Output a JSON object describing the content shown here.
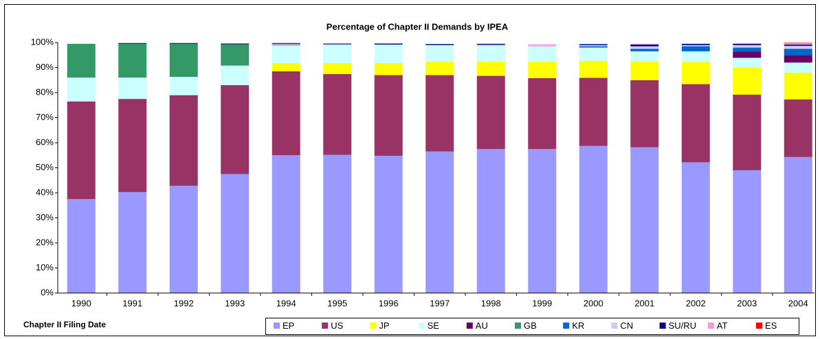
{
  "chart_data": {
    "type": "stacked_bar",
    "title": "Percentage of Chapter II Demands by IPEA",
    "x_label": "Chapter II Filing Date",
    "categories": [
      "1990",
      "1991",
      "1992",
      "1993",
      "1994",
      "1995",
      "1996",
      "1997",
      "1998",
      "1999",
      "2000",
      "2001",
      "2002",
      "2003",
      "2004"
    ],
    "series": [
      {
        "name": "EP",
        "color": "#9999ff",
        "values": [
          37.5,
          40.3,
          42.8,
          47.5,
          55,
          55.2,
          54.8,
          56.5,
          57.5,
          57.5,
          58.7,
          58.2,
          52.2,
          49,
          54.3
        ]
      },
      {
        "name": "US",
        "color": "#993366",
        "values": [
          39,
          37.2,
          36.2,
          35.5,
          33.5,
          32.2,
          32.2,
          30.5,
          29.2,
          28.3,
          27.2,
          26.8,
          31.2,
          30.2,
          23
        ]
      },
      {
        "name": "JP",
        "color": "#ffff00",
        "values": [
          0,
          0,
          0,
          0,
          3.3,
          4.4,
          4.8,
          5.3,
          5.7,
          6.5,
          6.8,
          7.3,
          8.8,
          10.8,
          10.7
        ]
      },
      {
        "name": "SE",
        "color": "#ccffff",
        "values": [
          9.5,
          8.5,
          7.3,
          7.8,
          7.2,
          7.2,
          7.4,
          6.7,
          6.3,
          6,
          5.3,
          4.2,
          4.3,
          3.9,
          4
        ]
      },
      {
        "name": "AU",
        "color": "#660066",
        "values": [
          0,
          0,
          0,
          0,
          0.2,
          0,
          0,
          0,
          0,
          0,
          0,
          0,
          0,
          2.5,
          3
        ]
      },
      {
        "name": "GB",
        "color": "#339966",
        "values": [
          13.5,
          13.5,
          13.2,
          8.5,
          0,
          0,
          0,
          0,
          0,
          0,
          0,
          0,
          0,
          0,
          0
        ]
      },
      {
        "name": "KR",
        "color": "#0066cc",
        "values": [
          0,
          0,
          0,
          0,
          0,
          0,
          0,
          0,
          0,
          0,
          0.5,
          1,
          2,
          1.6,
          2.5
        ]
      },
      {
        "name": "CN",
        "color": "#ccccff",
        "values": [
          0,
          0,
          0,
          0,
          0.3,
          0.3,
          0,
          0,
          0.4,
          0.5,
          0.5,
          1,
          0.5,
          1,
          1.2
        ]
      },
      {
        "name": "SU/RU",
        "color": "#000080",
        "values": [
          0,
          0.3,
          0.3,
          0.3,
          0.3,
          0.3,
          0.4,
          0.4,
          0.4,
          0,
          0.4,
          0.7,
          0.5,
          0.5,
          0.5
        ]
      },
      {
        "name": "AT",
        "color": "#ff99cc",
        "values": [
          0,
          0,
          0,
          0,
          0,
          0,
          0,
          0,
          0,
          0.5,
          0,
          0.3,
          0,
          0.3,
          0.5
        ]
      },
      {
        "name": "ES",
        "color": "#ff0000",
        "values": [
          0,
          0,
          0,
          0,
          0,
          0,
          0,
          0,
          0,
          0,
          0,
          0,
          0,
          0,
          0.2
        ]
      }
    ],
    "ylim": [
      0,
      100
    ],
    "yticks": [
      {
        "value": 0,
        "label": "0%"
      },
      {
        "value": 10,
        "label": "10%"
      },
      {
        "value": 20,
        "label": "20%"
      },
      {
        "value": 30,
        "label": "30%"
      },
      {
        "value": 40,
        "label": "40%"
      },
      {
        "value": 50,
        "label": "50%"
      },
      {
        "value": 60,
        "label": "60%"
      },
      {
        "value": 70,
        "label": "70%"
      },
      {
        "value": 80,
        "label": "80%"
      },
      {
        "value": 90,
        "label": "90%"
      },
      {
        "value": 100,
        "label": "100%"
      }
    ],
    "grid": false,
    "legend": "bottom"
  }
}
